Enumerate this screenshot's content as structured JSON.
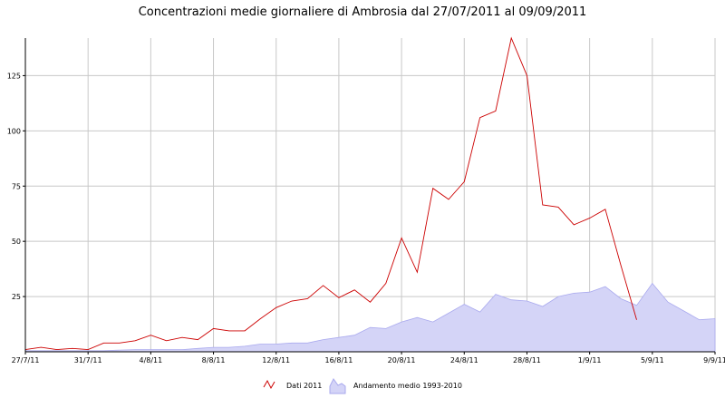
{
  "chart_data": {
    "type": "line",
    "title": "Concentrazioni medie giornaliere di Ambrosia dal 27/07/2011 al 09/09/2011",
    "xlabel": "",
    "ylabel": "",
    "x_tick_labels": [
      "27/7/11",
      "31/7/11",
      "4/8/11",
      "8/8/11",
      "12/8/11",
      "16/8/11",
      "20/8/11",
      "24/8/11",
      "28/8/11",
      "1/9/11",
      "5/9/11",
      "9/9/11"
    ],
    "y_tick_labels": [
      "25",
      "50",
      "75",
      "100",
      "125"
    ],
    "y_ticks": [
      25,
      50,
      75,
      100,
      125
    ],
    "ylim": [
      0,
      142
    ],
    "grid": true,
    "legend_position": "bottom-center",
    "series": [
      {
        "name": "Dati 2011",
        "kind": "line",
        "color": "#cc0000",
        "values": [
          1,
          2,
          1,
          1.5,
          1,
          4,
          4,
          5,
          7.5,
          5,
          6.5,
          5.5,
          10.5,
          9.5,
          9.5,
          15,
          20,
          23,
          24,
          30,
          24.5,
          28,
          22.5,
          31,
          51.5,
          36,
          74,
          69,
          77,
          106,
          109,
          142,
          125,
          66.5,
          65.5,
          57.5,
          60.5,
          64.5,
          39,
          14.5
        ]
      },
      {
        "name": "Andamento medio 1993-2010",
        "kind": "area",
        "color": "#d4d4f7",
        "line_color": "#a9a9ee",
        "values": [
          0.5,
          0.5,
          0.5,
          0.5,
          0.5,
          0.5,
          0.8,
          1,
          1,
          1,
          1,
          1.5,
          2,
          2,
          2.5,
          3.5,
          3.5,
          4,
          4,
          5.5,
          6.5,
          7.5,
          11,
          10.5,
          13.5,
          15.5,
          13.5,
          17.5,
          21.5,
          18,
          26,
          23.5,
          23,
          20.5,
          25,
          26.5,
          27,
          29.5,
          24,
          21,
          31,
          22.5,
          18.5,
          14.5,
          15
        ]
      }
    ]
  }
}
